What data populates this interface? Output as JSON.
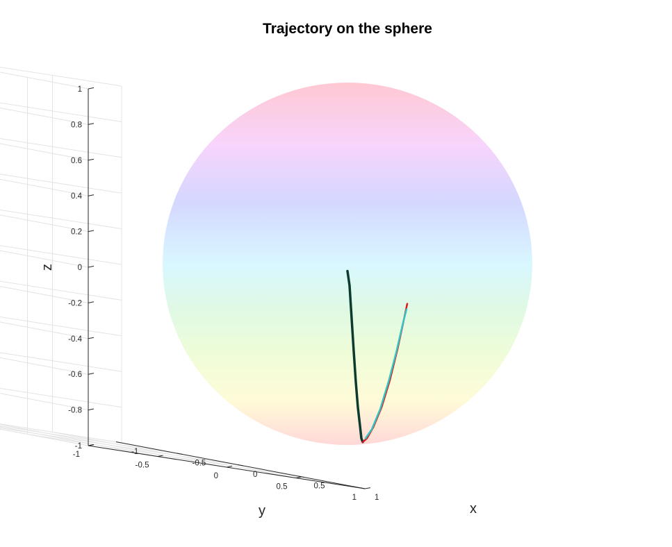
{
  "chart_data": {
    "type": "line",
    "title": "Trajectory on the sphere",
    "xlabel": "x",
    "ylabel": "y",
    "zlabel": "z",
    "xlim": [
      -1,
      1
    ],
    "ylim": [
      -1,
      1
    ],
    "zlim": [
      -1,
      1
    ],
    "x_ticks": [
      "-1",
      "-0.5",
      "0",
      "0.5",
      "1"
    ],
    "y_ticks": [
      "-1",
      "-0.5",
      "0",
      "0.5",
      "1"
    ],
    "z_ticks": [
      "-1",
      "-0.8",
      "-0.6",
      "-0.4",
      "-0.2",
      "0",
      "0.2",
      "0.4",
      "0.6",
      "0.8",
      "1"
    ],
    "grid": true,
    "surface": {
      "shape": "unit sphere",
      "colormap": [
        "#ffb3c1",
        "#f5c3fa",
        "#c4c8ff",
        "#c9f4ff",
        "#d4f7d9",
        "#e8fcc9",
        "#fff9c9",
        "#ffc9c9"
      ]
    },
    "series": [
      {
        "color": "#0d3b2e",
        "points": [
          [
            0.0,
            0.0,
            -0.04
          ],
          [
            0.03,
            0.08,
            -0.12
          ],
          [
            0.06,
            0.17,
            -0.3
          ],
          [
            0.09,
            0.24,
            -0.48
          ],
          [
            0.12,
            0.3,
            -0.65
          ],
          [
            0.15,
            0.34,
            -0.79
          ],
          [
            0.18,
            0.37,
            -0.89
          ],
          [
            0.2,
            0.39,
            -0.96
          ],
          [
            0.22,
            0.39,
            -0.98
          ]
        ]
      },
      {
        "color": "#d91a1a",
        "points": [
          [
            0.22,
            0.39,
            -0.98
          ],
          [
            0.28,
            0.37,
            -0.96
          ],
          [
            0.37,
            0.34,
            -0.9
          ],
          [
            0.49,
            0.3,
            -0.79
          ],
          [
            0.61,
            0.26,
            -0.64
          ],
          [
            0.72,
            0.23,
            -0.47
          ],
          [
            0.81,
            0.2,
            -0.31
          ],
          [
            0.86,
            0.19,
            -0.22
          ]
        ]
      },
      {
        "color": "#35c4c4",
        "points": [
          [
            0.26,
            0.38,
            -0.96
          ],
          [
            0.35,
            0.35,
            -0.91
          ],
          [
            0.47,
            0.31,
            -0.8
          ],
          [
            0.59,
            0.27,
            -0.65
          ],
          [
            0.7,
            0.24,
            -0.49
          ],
          [
            0.79,
            0.21,
            -0.34
          ],
          [
            0.85,
            0.19,
            -0.25
          ]
        ]
      }
    ]
  }
}
